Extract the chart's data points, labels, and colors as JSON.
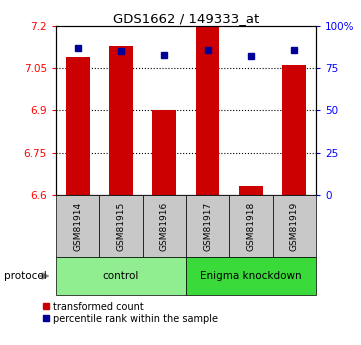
{
  "title": "GDS1662 / 149333_at",
  "samples": [
    "GSM81914",
    "GSM81915",
    "GSM81916",
    "GSM81917",
    "GSM81918",
    "GSM81919"
  ],
  "red_values": [
    7.09,
    7.13,
    6.9,
    7.2,
    6.63,
    7.06
  ],
  "blue_values": [
    87,
    85,
    83,
    86,
    82,
    86
  ],
  "ylim_left": [
    6.6,
    7.2
  ],
  "ylim_right": [
    0,
    100
  ],
  "yticks_left": [
    6.6,
    6.75,
    6.9,
    7.05,
    7.2
  ],
  "yticks_right": [
    0,
    25,
    50,
    75,
    100
  ],
  "ytick_labels_left": [
    "6.6",
    "6.75",
    "6.9",
    "7.05",
    "7.2"
  ],
  "ytick_labels_right": [
    "0",
    "25",
    "50",
    "75",
    "100%"
  ],
  "groups": [
    {
      "label": "control",
      "indices": [
        0,
        1,
        2
      ],
      "color": "#90EE90"
    },
    {
      "label": "Enigma knockdown",
      "indices": [
        3,
        4,
        5
      ],
      "color": "#3ADA3A"
    }
  ],
  "protocol_label": "protocol",
  "bar_color": "#CC0000",
  "marker_color": "#000099",
  "bg_color": "#FFFFFF",
  "legend_red_label": "transformed count",
  "legend_blue_label": "percentile rank within the sample",
  "bar_width": 0.55,
  "base_value": 6.6,
  "label_bg": "#C8C8C8",
  "figsize": [
    3.61,
    3.45
  ],
  "dpi": 100
}
